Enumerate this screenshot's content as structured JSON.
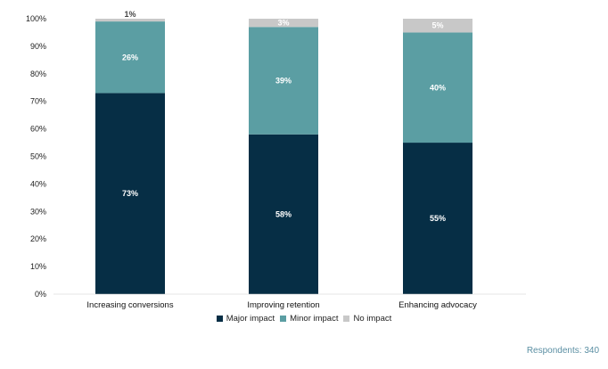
{
  "chart_data": {
    "type": "bar",
    "stacked": true,
    "categories": [
      "Increasing conversions",
      "Improving retention",
      "Enhancing advocacy"
    ],
    "series": [
      {
        "name": "Major impact",
        "color": "#062e45",
        "label_color": "#ffffff",
        "values": [
          73,
          58,
          55
        ],
        "labels": [
          "73%",
          "58%",
          "55%"
        ]
      },
      {
        "name": "Minor impact",
        "color": "#5b9ea3",
        "label_color": "#ffffff",
        "values": [
          26,
          39,
          40
        ],
        "labels": [
          "26%",
          "39%",
          "40%"
        ]
      },
      {
        "name": "No impact",
        "color": "#c8c8c8",
        "label_color": "#ffffff",
        "values": [
          1,
          3,
          5
        ],
        "labels": [
          "1%",
          "3%",
          "5%"
        ]
      }
    ],
    "y_ticks": [
      "0%",
      "10%",
      "20%",
      "30%",
      "40%",
      "50%",
      "60%",
      "70%",
      "80%",
      "90%",
      "100%"
    ],
    "ylim": [
      0,
      100
    ],
    "grid": false,
    "legend_position": "bottom"
  },
  "footer": "Respondents: 340"
}
